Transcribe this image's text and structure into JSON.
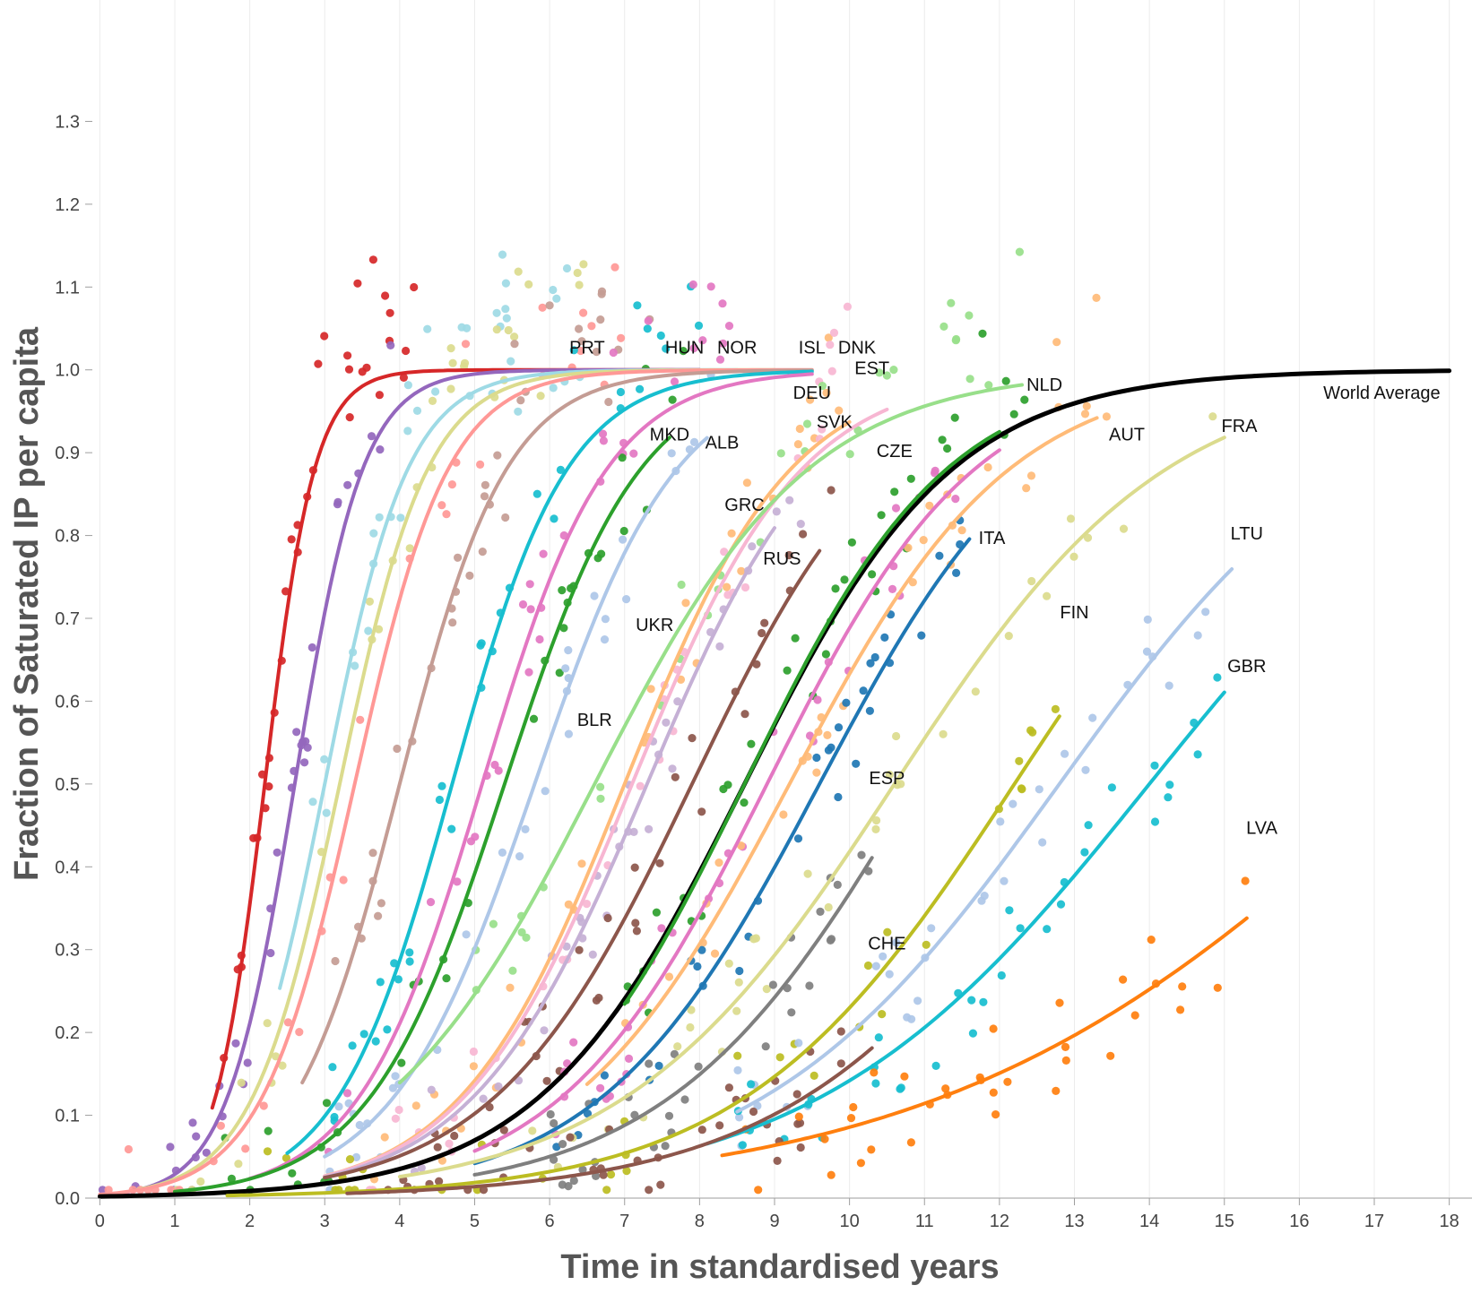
{
  "chart_data": {
    "type": "scatter",
    "xlabel": "Time in standardised years",
    "ylabel": "Fraction of Saturated IP per capita",
    "xlim": [
      -0.1,
      18.1
    ],
    "ylim": [
      0,
      1.36
    ],
    "x_ticks": [
      0,
      1,
      2,
      3,
      4,
      5,
      6,
      7,
      8,
      9,
      10,
      11,
      12,
      13,
      14,
      15,
      16,
      17,
      18
    ],
    "y_ticks": [
      0.0,
      0.1,
      0.2,
      0.3,
      0.4,
      0.5,
      0.6,
      0.7,
      0.8,
      0.9,
      1.0,
      1.1,
      1.2,
      1.3
    ],
    "grid": {
      "x": true,
      "y": false
    },
    "x_ticks_labels": [
      "0",
      "1",
      "2",
      "3",
      "4",
      "5",
      "6",
      "7",
      "8",
      "9",
      "10",
      "11",
      "12",
      "13",
      "14",
      "15",
      "16",
      "17",
      "18"
    ],
    "y_ticks_labels": [
      "0.0",
      "0.1",
      "0.2",
      "0.3",
      "0.4",
      "0.5",
      "0.6",
      "0.7",
      "0.8",
      "0.9",
      "1.0",
      "1.1",
      "1.2",
      "1.3"
    ],
    "series": [
      {
        "name": "",
        "color": "#d62728",
        "fit": {
          "x0": 2.2,
          "k": 3.0,
          "from": 1.5,
          "to": 8.0
        },
        "scatter_mid": 2.4,
        "scatter_range": [
          1.6,
          4.2
        ]
      },
      {
        "name": "",
        "color": "#9467bd",
        "fit": {
          "x0": 2.6,
          "k": 2.2,
          "from": 0.0,
          "to": 8.0
        },
        "scatter_mid": 2.7,
        "scatter_range": [
          0.0,
          4.0
        ]
      },
      {
        "name": "",
        "color": "#9edae5",
        "fit": {
          "x0": 3.0,
          "k": 1.8,
          "from": 2.4,
          "to": 8.5
        },
        "scatter_mid": 3.2,
        "scatter_range": [
          2.5,
          6.5
        ]
      },
      {
        "name": "",
        "color": "#dbdb8d",
        "fit": {
          "x0": 3.2,
          "k": 1.7,
          "from": 0.5,
          "to": 9.0
        },
        "scatter_mid": 3.4,
        "scatter_range": [
          1.0,
          6.5
        ]
      },
      {
        "name": "",
        "color": "#ff9896",
        "fit": {
          "x0": 3.4,
          "k": 1.6,
          "from": 0.0,
          "to": 9.5
        },
        "scatter_mid": 3.7,
        "scatter_range": [
          0.0,
          7.0
        ]
      },
      {
        "name": "",
        "color": "#c49c94",
        "fit": {
          "x0": 4.0,
          "k": 1.4,
          "from": 2.7,
          "to": 9.5
        },
        "scatter_mid": 4.1,
        "scatter_range": [
          3.0,
          7.5
        ]
      },
      {
        "name": "",
        "color": "#17becf",
        "fit": {
          "x0": 4.7,
          "k": 1.3,
          "from": 2.5,
          "to": 9.5
        },
        "scatter_mid": 4.8,
        "scatter_range": [
          3.0,
          8.0
        ]
      },
      {
        "name": "",
        "color": "#e377c2",
        "fit": {
          "x0": 5.1,
          "k": 1.2,
          "from": 2.0,
          "to": 9.5
        },
        "scatter_mid": 5.2,
        "scatter_range": [
          3.0,
          8.5
        ]
      },
      {
        "name": "",
        "color": "#2ca02c",
        "fit": {
          "x0": 5.4,
          "k": 1.1,
          "from": 1.0,
          "to": 7.6
        },
        "scatter_mid": 5.5,
        "scatter_range": [
          1.5,
          8.0
        ]
      },
      {
        "name": "",
        "color": "#aec7e8",
        "fit": {
          "x0": 5.8,
          "k": 1.05,
          "from": 3.0,
          "to": 8.1
        },
        "scatter_mid": 6.0,
        "scatter_range": [
          3.0,
          8.5
        ]
      },
      {
        "name": "",
        "color": "#ffbb78",
        "fit": {
          "x0": 7.0,
          "k": 0.9,
          "from": 3.0,
          "to": 10.0
        },
        "scatter_mid": 7.0,
        "scatter_range": [
          3.5,
          10.0
        ]
      },
      {
        "name": "",
        "color": "#f7b6d2",
        "fit": {
          "x0": 7.1,
          "k": 0.88,
          "from": 3.0,
          "to": 10.5
        },
        "scatter_mid": 7.1,
        "scatter_range": [
          3.5,
          10.0
        ]
      },
      {
        "name": "",
        "color": "#c5b0d5",
        "fit": {
          "x0": 7.3,
          "k": 0.85,
          "from": 3.0,
          "to": 9.0
        },
        "scatter_mid": 7.3,
        "scatter_range": [
          4.0,
          9.5
        ]
      },
      {
        "name": "",
        "color": "#98df8a",
        "fit": {
          "x0": 6.6,
          "k": 0.7,
          "from": 4.0,
          "to": 12.3
        },
        "scatter_mid": 7.5,
        "scatter_range": [
          5.0,
          12.5
        ]
      },
      {
        "name": "",
        "color": "#8c564b",
        "fit": {
          "x0": 7.9,
          "k": 0.75,
          "from": 3.0,
          "to": 9.6
        },
        "scatter_mid": 7.9,
        "scatter_range": [
          4.0,
          10.0
        ]
      },
      {
        "name": "",
        "color": "#000000",
        "fit": {
          "x0": 8.6,
          "k": 0.72,
          "from": 0.0,
          "to": 18.0
        },
        "scatter_mid": 0,
        "scatter_range": [
          0,
          0
        ]
      },
      {
        "name": "",
        "color": "#2ca02c",
        "fit": {
          "x0": 8.6,
          "k": 0.74,
          "from": 7.0,
          "to": 12.0
        },
        "scatter_mid": 9.0,
        "scatter_range": [
          7.0,
          12.5
        ]
      },
      {
        "name": "",
        "color": "#e377c2",
        "fit": {
          "x0": 8.9,
          "k": 0.72,
          "from": 5.0,
          "to": 12.0
        },
        "scatter_mid": 9.0,
        "scatter_range": [
          6.0,
          11.5
        ]
      },
      {
        "name": "",
        "color": "#ffbb78",
        "fit": {
          "x0": 9.2,
          "k": 0.68,
          "from": 6.5,
          "to": 13.3
        },
        "scatter_mid": 9.5,
        "scatter_range": [
          7.0,
          13.5
        ]
      },
      {
        "name": "",
        "color": "#1f77b4",
        "fit": {
          "x0": 9.6,
          "k": 0.68,
          "from": 5.0,
          "to": 11.6
        },
        "scatter_mid": 9.6,
        "scatter_range": [
          6.0,
          11.5
        ]
      },
      {
        "name": "",
        "color": "#dbdb8d",
        "fit": {
          "x0": 10.6,
          "k": 0.55,
          "from": 4.0,
          "to": 15.0
        },
        "scatter_mid": 11.0,
        "scatter_range": [
          5.0,
          15.0
        ]
      },
      {
        "name": "",
        "color": "#7f7f7f",
        "fit": {
          "x0": 10.9,
          "k": 0.6,
          "from": 5.0,
          "to": 10.3
        },
        "scatter_mid": 9.5,
        "scatter_range": [
          6.0,
          10.3
        ]
      },
      {
        "name": "",
        "color": "#bcbd22",
        "fit": {
          "x0": 12.2,
          "k": 0.55,
          "from": 1.7,
          "to": 12.8
        },
        "scatter_mid": 10.0,
        "scatter_range": [
          2.0,
          12.8
        ]
      },
      {
        "name": "",
        "color": "#aec7e8",
        "fit": {
          "x0": 12.8,
          "k": 0.5,
          "from": 8.5,
          "to": 15.1
        },
        "scatter_mid": 12.5,
        "scatter_range": [
          8.5,
          15.1
        ]
      },
      {
        "name": "",
        "color": "#17becf",
        "fit": {
          "x0": 14.0,
          "k": 0.45,
          "from": 8.1,
          "to": 15.0
        },
        "scatter_mid": 12.5,
        "scatter_range": [
          8.4,
          15.0
        ]
      },
      {
        "name": "",
        "color": "#8c564b",
        "fit": {
          "x0": 13.2,
          "k": 0.52,
          "from": 3.3,
          "to": 10.3
        },
        "scatter_mid": 8.0,
        "scatter_range": [
          3.5,
          10.3
        ]
      },
      {
        "name": "",
        "color": "#ff7f0e",
        "fit": {
          "x0": 17.4,
          "k": 0.32,
          "from": 8.3,
          "to": 15.3
        },
        "scatter_mid": 12.5,
        "scatter_range": [
          8.5,
          15.3
        ]
      }
    ],
    "annotations": [
      {
        "text": "PRT",
        "x": 6.5,
        "y": 1.02
      },
      {
        "text": "HUN",
        "x": 7.8,
        "y": 1.02
      },
      {
        "text": "NOR",
        "x": 8.5,
        "y": 1.02
      },
      {
        "text": "ISL",
        "x": 9.5,
        "y": 1.02
      },
      {
        "text": "DNK",
        "x": 10.1,
        "y": 1.02
      },
      {
        "text": "EST",
        "x": 10.3,
        "y": 0.995
      },
      {
        "text": "DEU",
        "x": 9.5,
        "y": 0.965
      },
      {
        "text": "SVK",
        "x": 9.8,
        "y": 0.93
      },
      {
        "text": "CZE",
        "x": 10.6,
        "y": 0.895
      },
      {
        "text": "MKD",
        "x": 7.6,
        "y": 0.915
      },
      {
        "text": "ALB",
        "x": 8.3,
        "y": 0.905
      },
      {
        "text": "GRC",
        "x": 8.6,
        "y": 0.83
      },
      {
        "text": "RUS",
        "x": 9.1,
        "y": 0.765
      },
      {
        "text": "UKR",
        "x": 7.4,
        "y": 0.685
      },
      {
        "text": "BLR",
        "x": 6.6,
        "y": 0.57
      },
      {
        "text": "NLD",
        "x": 12.6,
        "y": 0.975
      },
      {
        "text": "World Average",
        "x": 17.1,
        "y": 0.965
      },
      {
        "text": "AUT",
        "x": 13.7,
        "y": 0.915
      },
      {
        "text": "FRA",
        "x": 15.2,
        "y": 0.925
      },
      {
        "text": "ITA",
        "x": 11.9,
        "y": 0.79
      },
      {
        "text": "LTU",
        "x": 15.3,
        "y": 0.795
      },
      {
        "text": "FIN",
        "x": 13.0,
        "y": 0.7
      },
      {
        "text": "GBR",
        "x": 15.3,
        "y": 0.635
      },
      {
        "text": "ESP",
        "x": 10.5,
        "y": 0.5
      },
      {
        "text": "LVA",
        "x": 15.5,
        "y": 0.44
      },
      {
        "text": "CHE",
        "x": 10.5,
        "y": 0.3
      }
    ]
  }
}
